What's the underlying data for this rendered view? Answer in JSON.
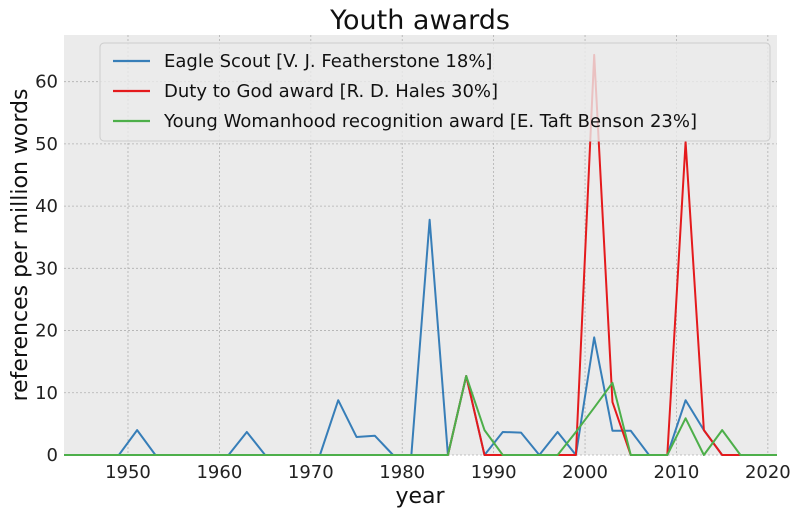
{
  "chart_data": {
    "type": "line",
    "title": "Youth awards",
    "xlabel": "year",
    "ylabel": "references per million words",
    "xlim": [
      1943,
      2021
    ],
    "ylim": [
      0,
      67.5
    ],
    "xticks": [
      1950,
      1960,
      1970,
      1980,
      1990,
      2000,
      2010,
      2020
    ],
    "yticks": [
      0,
      10,
      20,
      30,
      40,
      50,
      60
    ],
    "grid": true,
    "legend_position": "top",
    "series": [
      {
        "name": "Eagle Scout [V. J. Featherstone 18%]",
        "color": "#377eb8",
        "points": [
          [
            1943,
            0
          ],
          [
            1949,
            0
          ],
          [
            1951,
            4
          ],
          [
            1953,
            0
          ],
          [
            1961,
            0
          ],
          [
            1963,
            3.7
          ],
          [
            1965,
            0
          ],
          [
            1971,
            0
          ],
          [
            1973,
            8.8
          ],
          [
            1975,
            2.9
          ],
          [
            1977,
            3.1
          ],
          [
            1979,
            0
          ],
          [
            1981,
            0
          ],
          [
            1983,
            37.8
          ],
          [
            1985,
            0
          ],
          [
            1987,
            12.7
          ],
          [
            1989,
            0
          ],
          [
            1991,
            3.7
          ],
          [
            1993,
            3.6
          ],
          [
            1995,
            0
          ],
          [
            1997,
            3.7
          ],
          [
            1999,
            0
          ],
          [
            2001,
            18.9
          ],
          [
            2003,
            3.9
          ],
          [
            2005,
            3.9
          ],
          [
            2007,
            0
          ],
          [
            2009,
            0
          ],
          [
            2011,
            8.8
          ],
          [
            2013,
            4
          ],
          [
            2015,
            0
          ],
          [
            2021,
            0
          ]
        ]
      },
      {
        "name": "Duty to God award [R. D. Hales 30%]",
        "color": "#e41a1c",
        "points": [
          [
            1943,
            0
          ],
          [
            1985,
            0
          ],
          [
            1987,
            12.7
          ],
          [
            1989,
            0
          ],
          [
            1999,
            0
          ],
          [
            2001,
            64.3
          ],
          [
            2003,
            8.5
          ],
          [
            2005,
            0
          ],
          [
            2009,
            0
          ],
          [
            2011,
            50.3
          ],
          [
            2013,
            4
          ],
          [
            2015,
            0
          ],
          [
            2021,
            0
          ]
        ]
      },
      {
        "name": "Young Womanhood recognition award [E. Taft Benson 23%]",
        "color": "#4daf4a",
        "points": [
          [
            1943,
            0
          ],
          [
            1985,
            0
          ],
          [
            1987,
            12.7
          ],
          [
            1989,
            4
          ],
          [
            1991,
            0
          ],
          [
            1997,
            0
          ],
          [
            1999,
            3.7
          ],
          [
            2001,
            7.6
          ],
          [
            2003,
            11.6
          ],
          [
            2005,
            0
          ],
          [
            2009,
            0
          ],
          [
            2011,
            5.9
          ],
          [
            2013,
            0
          ],
          [
            2015,
            4
          ],
          [
            2017,
            0
          ],
          [
            2021,
            0
          ]
        ]
      }
    ]
  }
}
